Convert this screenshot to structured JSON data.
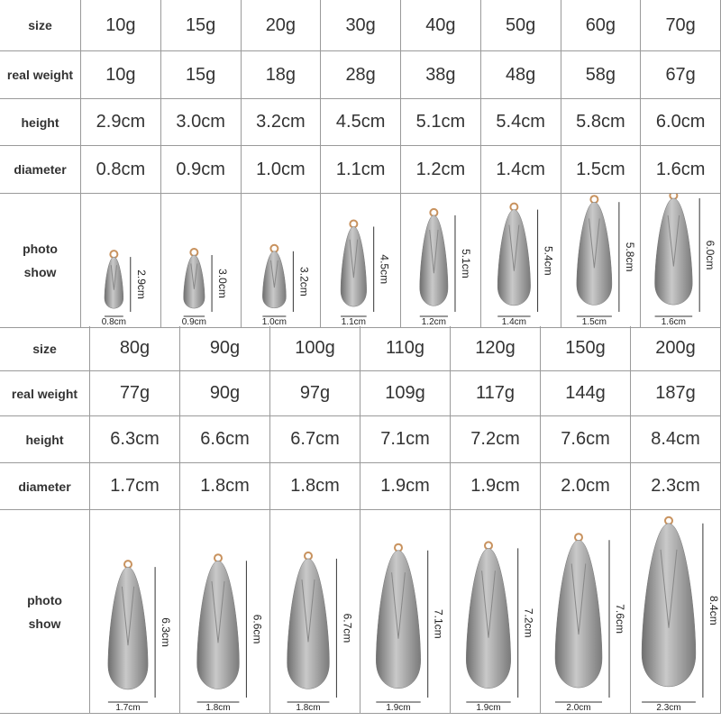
{
  "tables": [
    {
      "row_labels": [
        "size",
        "real weight",
        "height",
        "diameter",
        "photo show"
      ],
      "columns": [
        {
          "size": "10g",
          "real_weight": "10g",
          "height": "2.9cm",
          "diameter": "0.8cm"
        },
        {
          "size": "15g",
          "real_weight": "15g",
          "height": "3.0cm",
          "diameter": "0.9cm"
        },
        {
          "size": "20g",
          "real_weight": "18g",
          "height": "3.2cm",
          "diameter": "1.0cm"
        },
        {
          "size": "30g",
          "real_weight": "28g",
          "height": "4.5cm",
          "diameter": "1.1cm"
        },
        {
          "size": "40g",
          "real_weight": "38g",
          "height": "5.1cm",
          "diameter": "1.2cm"
        },
        {
          "size": "50g",
          "real_weight": "48g",
          "height": "5.4cm",
          "diameter": "1.4cm"
        },
        {
          "size": "60g",
          "real_weight": "58g",
          "height": "5.8cm",
          "diameter": "1.5cm"
        },
        {
          "size": "70g",
          "real_weight": "67g",
          "height": "6.0cm",
          "diameter": "1.6cm"
        }
      ]
    },
    {
      "row_labels": [
        "size",
        "real weight",
        "height",
        "diameter",
        "photo show"
      ],
      "columns": [
        {
          "size": "80g",
          "real_weight": "77g",
          "height": "6.3cm",
          "diameter": "1.7cm"
        },
        {
          "size": "90g",
          "real_weight": "90g",
          "height": "6.6cm",
          "diameter": "1.8cm"
        },
        {
          "size": "100g",
          "real_weight": "97g",
          "height": "6.7cm",
          "diameter": "1.8cm"
        },
        {
          "size": "110g",
          "real_weight": "109g",
          "height": "7.1cm",
          "diameter": "1.9cm"
        },
        {
          "size": "120g",
          "real_weight": "117g",
          "height": "7.2cm",
          "diameter": "1.9cm"
        },
        {
          "size": "150g",
          "real_weight": "144g",
          "height": "7.6cm",
          "diameter": "2.0cm"
        },
        {
          "size": "200g",
          "real_weight": "187g",
          "height": "8.4cm",
          "diameter": "2.3cm"
        }
      ]
    }
  ]
}
